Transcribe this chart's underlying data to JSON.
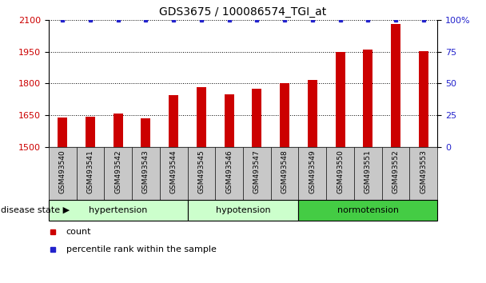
{
  "title": "GDS3675 / 100086574_TGI_at",
  "samples": [
    "GSM493540",
    "GSM493541",
    "GSM493542",
    "GSM493543",
    "GSM493544",
    "GSM493545",
    "GSM493546",
    "GSM493547",
    "GSM493548",
    "GSM493549",
    "GSM493550",
    "GSM493551",
    "GSM493552",
    "GSM493553"
  ],
  "bar_values": [
    1638,
    1643,
    1660,
    1635,
    1745,
    1783,
    1748,
    1775,
    1802,
    1815,
    1948,
    1960,
    2082,
    1952
  ],
  "percentile_values": [
    100,
    100,
    100,
    100,
    100,
    100,
    100,
    100,
    100,
    100,
    100,
    100,
    100,
    100
  ],
  "bar_color": "#cc0000",
  "percentile_color": "#2222cc",
  "ymin": 1500,
  "ymax": 2100,
  "yticks": [
    1500,
    1650,
    1800,
    1950,
    2100
  ],
  "y2min": 0,
  "y2max": 100,
  "y2ticks": [
    0,
    25,
    50,
    75,
    100
  ],
  "y2ticklabels": [
    "0",
    "25",
    "50",
    "75",
    "100%"
  ],
  "group_info": [
    {
      "label": "hypertension",
      "start": 0,
      "end": 4,
      "color": "#ccffcc"
    },
    {
      "label": "hypotension",
      "start": 5,
      "end": 8,
      "color": "#ccffcc"
    },
    {
      "label": "normotension",
      "start": 9,
      "end": 13,
      "color": "#44cc44"
    }
  ],
  "disease_state_label": "disease state",
  "legend_items": [
    {
      "label": "count",
      "color": "#cc0000"
    },
    {
      "label": "percentile rank within the sample",
      "color": "#2222cc"
    }
  ],
  "tick_label_bg": "#c8c8c8",
  "bar_width": 0.35
}
